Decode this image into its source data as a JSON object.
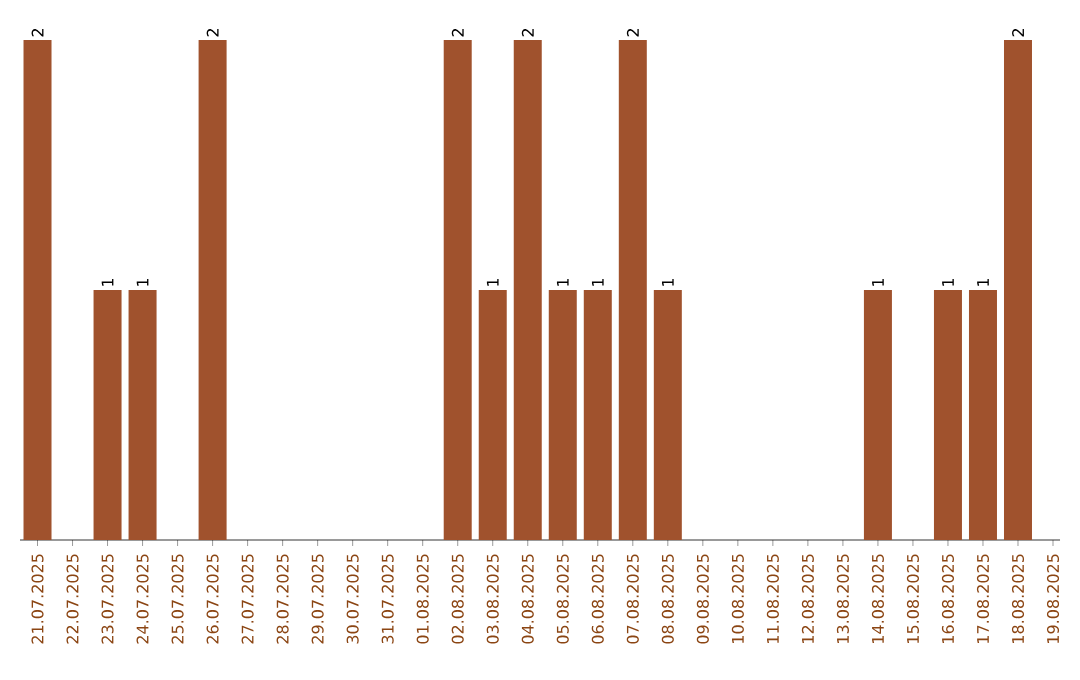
{
  "chart_data": {
    "type": "bar",
    "color": "#a0522d",
    "categories": [
      "21.07.2025",
      "22.07.2025",
      "23.07.2025",
      "24.07.2025",
      "25.07.2025",
      "26.07.2025",
      "27.07.2025",
      "28.07.2025",
      "29.07.2025",
      "30.07.2025",
      "31.07.2025",
      "01.08.2025",
      "02.08.2025",
      "03.08.2025",
      "04.08.2025",
      "05.08.2025",
      "06.08.2025",
      "07.08.2025",
      "08.08.2025",
      "09.08.2025",
      "10.08.2025",
      "11.08.2025",
      "12.08.2025",
      "13.08.2025",
      "14.08.2025",
      "15.08.2025",
      "16.08.2025",
      "17.08.2025",
      "18.08.2025",
      "19.08.2025"
    ],
    "values": [
      2,
      0,
      1,
      1,
      0,
      2,
      0,
      0,
      0,
      0,
      0,
      0,
      2,
      1,
      2,
      1,
      1,
      2,
      1,
      0,
      0,
      0,
      0,
      0,
      1,
      0,
      1,
      1,
      2,
      0
    ],
    "value_labels": [
      "2",
      null,
      "1",
      "1",
      null,
      "2",
      null,
      null,
      null,
      null,
      null,
      null,
      "2",
      "1",
      "2",
      "1",
      "1",
      "2",
      "1",
      null,
      null,
      null,
      null,
      null,
      "1",
      null,
      "1",
      "1",
      "2",
      null
    ],
    "grid": false
  }
}
